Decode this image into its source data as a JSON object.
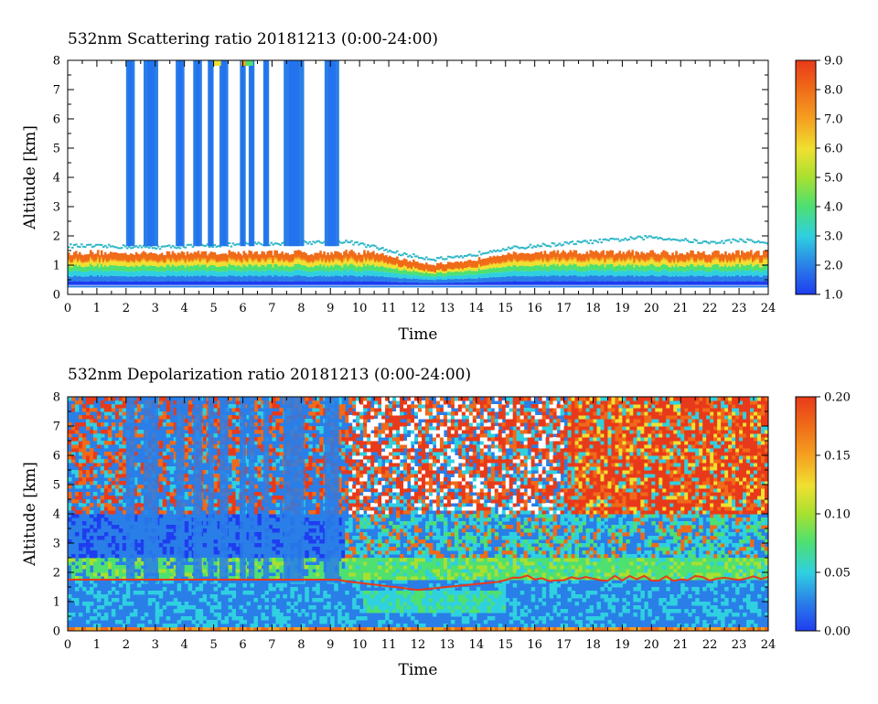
{
  "chart_data": [
    {
      "type": "heatmap",
      "title": "532nm Scattering ratio  20181213 (0:00-24:00)",
      "xlabel": "Time",
      "ylabel": "Altitude [km]",
      "xlim": [
        0,
        24
      ],
      "ylim": [
        0,
        8
      ],
      "x_ticks": [
        "0",
        "1",
        "2",
        "3",
        "4",
        "5",
        "6",
        "7",
        "8",
        "9",
        "10",
        "11",
        "12",
        "13",
        "14",
        "15",
        "16",
        "17",
        "18",
        "19",
        "20",
        "21",
        "22",
        "23",
        "24"
      ],
      "y_ticks": [
        "0",
        "1",
        "2",
        "3",
        "4",
        "5",
        "6",
        "7",
        "8"
      ],
      "colorbar": {
        "min": 1.0,
        "max": 9.0,
        "ticks": [
          "1.0",
          "2.0",
          "3.0",
          "4.0",
          "5.0",
          "6.0",
          "7.0",
          "8.0",
          "9.0"
        ]
      },
      "cloud_columns": [
        [
          2.0,
          2.3
        ],
        [
          2.6,
          3.1
        ],
        [
          3.7,
          4.0
        ],
        [
          4.3,
          4.6
        ],
        [
          4.8,
          5.0
        ],
        [
          5.2,
          5.5
        ],
        [
          5.9,
          6.1
        ],
        [
          6.2,
          6.4
        ],
        [
          6.7,
          6.9
        ],
        [
          7.4,
          8.1
        ],
        [
          8.8,
          9.3
        ]
      ],
      "aerosol_top_km": [
        [
          0,
          1.65
        ],
        [
          3,
          1.6
        ],
        [
          6,
          1.7
        ],
        [
          9.5,
          1.8
        ],
        [
          10.5,
          1.6
        ],
        [
          11.5,
          1.35
        ],
        [
          12.5,
          1.2
        ],
        [
          13.5,
          1.25
        ],
        [
          14.5,
          1.5
        ],
        [
          16,
          1.65
        ],
        [
          18,
          1.8
        ],
        [
          20,
          1.95
        ],
        [
          21,
          1.85
        ],
        [
          22,
          1.75
        ],
        [
          23,
          1.85
        ],
        [
          24,
          1.75
        ]
      ]
    },
    {
      "type": "heatmap",
      "title": "532nm Depolarization ratio  20181213 (0:00-24:00)",
      "xlabel": "Time",
      "ylabel": "Altitude [km]",
      "xlim": [
        0,
        24
      ],
      "ylim": [
        0,
        8
      ],
      "x_ticks": [
        "0",
        "1",
        "2",
        "3",
        "4",
        "5",
        "6",
        "7",
        "8",
        "9",
        "10",
        "11",
        "12",
        "13",
        "14",
        "15",
        "16",
        "17",
        "18",
        "19",
        "20",
        "21",
        "22",
        "23",
        "24"
      ],
      "y_ticks": [
        "0",
        "1",
        "2",
        "3",
        "4",
        "5",
        "6",
        "7",
        "8"
      ],
      "colorbar": {
        "min": 0.0,
        "max": 0.2,
        "ticks": [
          "0.00",
          "0.05",
          "0.10",
          "0.15",
          "0.20"
        ]
      }
    }
  ]
}
